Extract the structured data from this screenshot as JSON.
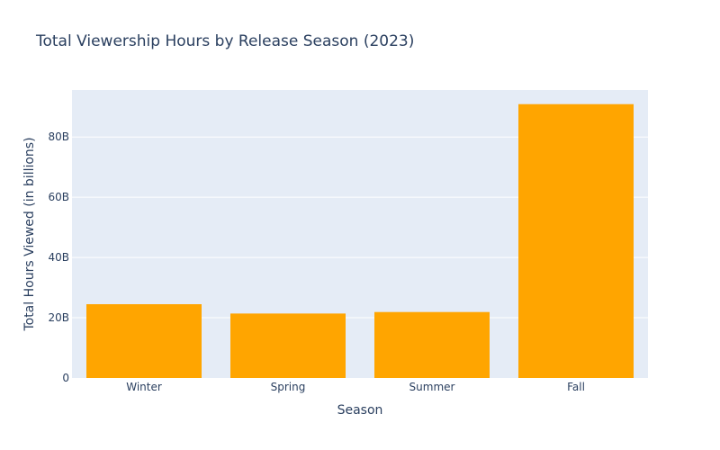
{
  "chart_data": {
    "type": "bar",
    "title": "Total Viewership Hours by Release Season (2023)",
    "xlabel": "Season",
    "ylabel": "Total Hours Viewed (in billions)",
    "categories": [
      "Winter",
      "Spring",
      "Summer",
      "Fall"
    ],
    "values": [
      24.5,
      21.4,
      21.9,
      90.9
    ],
    "ylim": [
      0,
      95.6
    ],
    "yticks": [
      0,
      20,
      40,
      60,
      80
    ],
    "ytick_labels": [
      "0",
      "20B",
      "40B",
      "60B",
      "80B"
    ],
    "bar_color": "#FFA500",
    "plot_bg": "#E5ECF6",
    "grid_color": "#FFFFFF",
    "grid": true
  }
}
